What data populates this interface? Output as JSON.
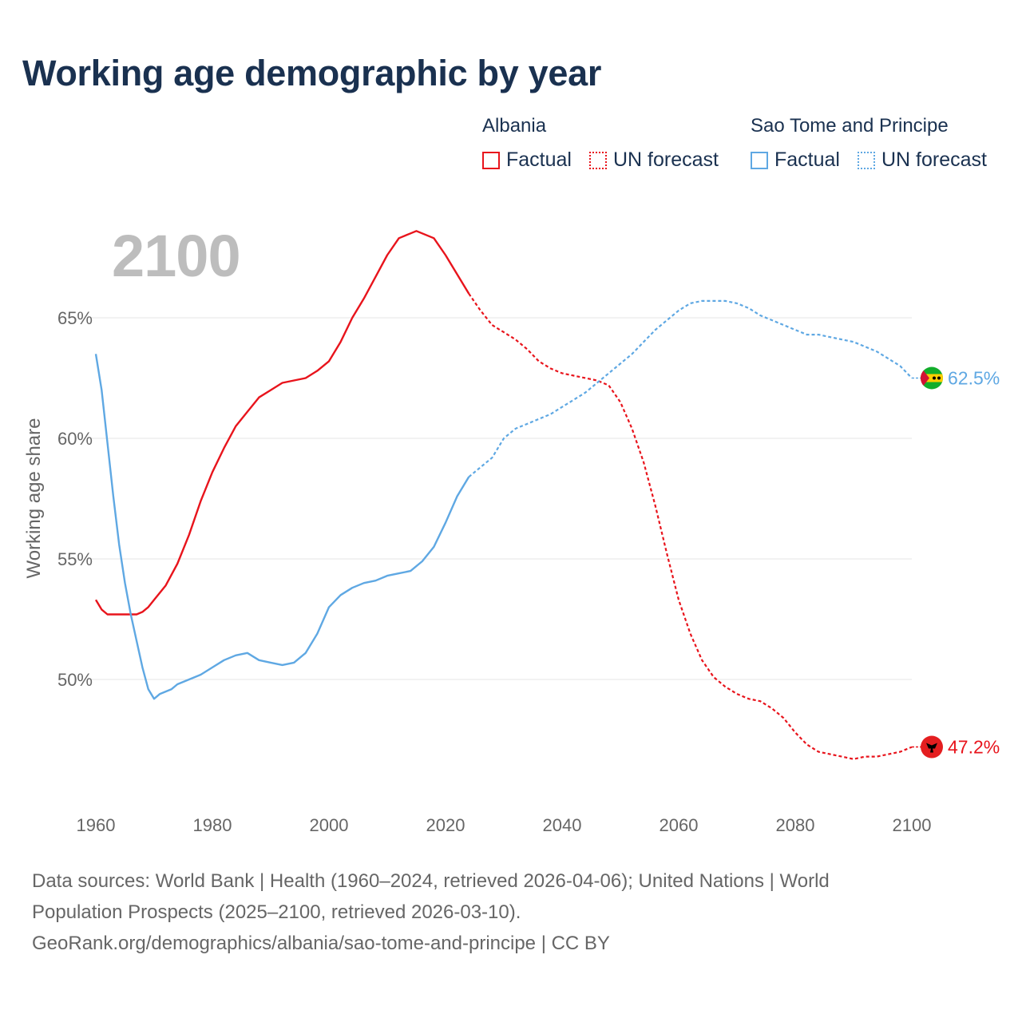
{
  "title": "Working age demographic by year",
  "year_label": "2100",
  "legend": {
    "groups": [
      {
        "name": "Albania",
        "factual": "Factual",
        "forecast": "UN forecast",
        "color": "#e8141c"
      },
      {
        "name": "Sao Tome and Principe",
        "factual": "Factual",
        "forecast": "UN forecast",
        "color": "#5fa8e3"
      }
    ]
  },
  "chart_data": {
    "type": "line",
    "title": "Working age demographic by year",
    "xlabel": "",
    "ylabel": "Working age share",
    "xlim": [
      1960,
      2100
    ],
    "ylim": [
      45,
      70
    ],
    "x_ticks": [
      1960,
      1980,
      2000,
      2020,
      2040,
      2060,
      2080,
      2100
    ],
    "x_tick_labels": [
      "1960",
      "1980",
      "2000",
      "2020",
      "2040",
      "2060",
      "2080",
      "2100"
    ],
    "y_ticks": [
      50,
      55,
      60,
      65
    ],
    "y_tick_labels": [
      "50%",
      "55%",
      "60%",
      "65%"
    ],
    "grid": true,
    "factual_range": [
      1960,
      2024
    ],
    "forecast_range": [
      2024,
      2100
    ],
    "series": [
      {
        "name": "Albania",
        "color": "#e8141c",
        "end_label": "47.2%",
        "flag_icon": "albania-flag-icon",
        "points": [
          [
            1960,
            53.3
          ],
          [
            1961,
            52.9
          ],
          [
            1962,
            52.7
          ],
          [
            1964,
            52.7
          ],
          [
            1966,
            52.7
          ],
          [
            1967,
            52.7
          ],
          [
            1968,
            52.8
          ],
          [
            1969,
            53.0
          ],
          [
            1970,
            53.3
          ],
          [
            1972,
            53.9
          ],
          [
            1974,
            54.8
          ],
          [
            1976,
            56.0
          ],
          [
            1978,
            57.4
          ],
          [
            1979,
            58.0
          ],
          [
            1980,
            58.6
          ],
          [
            1982,
            59.6
          ],
          [
            1984,
            60.5
          ],
          [
            1986,
            61.1
          ],
          [
            1988,
            61.7
          ],
          [
            1990,
            62.0
          ],
          [
            1992,
            62.3
          ],
          [
            1994,
            62.4
          ],
          [
            1996,
            62.5
          ],
          [
            1998,
            62.8
          ],
          [
            2000,
            63.2
          ],
          [
            2002,
            64.0
          ],
          [
            2004,
            65.0
          ],
          [
            2006,
            65.8
          ],
          [
            2008,
            66.7
          ],
          [
            2010,
            67.6
          ],
          [
            2012,
            68.3
          ],
          [
            2014,
            68.5
          ],
          [
            2015,
            68.6
          ],
          [
            2016,
            68.5
          ],
          [
            2018,
            68.3
          ],
          [
            2020,
            67.6
          ],
          [
            2022,
            66.8
          ],
          [
            2024,
            66.0
          ],
          [
            2026,
            65.3
          ],
          [
            2028,
            64.7
          ],
          [
            2030,
            64.4
          ],
          [
            2032,
            64.1
          ],
          [
            2034,
            63.7
          ],
          [
            2036,
            63.2
          ],
          [
            2038,
            62.9
          ],
          [
            2040,
            62.7
          ],
          [
            2042,
            62.6
          ],
          [
            2044,
            62.5
          ],
          [
            2046,
            62.4
          ],
          [
            2048,
            62.2
          ],
          [
            2050,
            61.5
          ],
          [
            2052,
            60.4
          ],
          [
            2054,
            59.0
          ],
          [
            2056,
            57.2
          ],
          [
            2058,
            55.2
          ],
          [
            2060,
            53.3
          ],
          [
            2062,
            51.9
          ],
          [
            2064,
            50.8
          ],
          [
            2066,
            50.1
          ],
          [
            2068,
            49.7
          ],
          [
            2070,
            49.4
          ],
          [
            2072,
            49.2
          ],
          [
            2074,
            49.1
          ],
          [
            2076,
            48.8
          ],
          [
            2078,
            48.4
          ],
          [
            2080,
            47.8
          ],
          [
            2082,
            47.3
          ],
          [
            2084,
            47.0
          ],
          [
            2086,
            46.9
          ],
          [
            2088,
            46.8
          ],
          [
            2090,
            46.7
          ],
          [
            2092,
            46.8
          ],
          [
            2094,
            46.8
          ],
          [
            2096,
            46.9
          ],
          [
            2098,
            47.0
          ],
          [
            2100,
            47.2
          ]
        ]
      },
      {
        "name": "Sao Tome and Principe",
        "color": "#5fa8e3",
        "end_label": "62.5%",
        "flag_icon": "sao-tome-flag-icon",
        "points": [
          [
            1960,
            63.5
          ],
          [
            1961,
            62.0
          ],
          [
            1962,
            59.8
          ],
          [
            1963,
            57.6
          ],
          [
            1964,
            55.6
          ],
          [
            1965,
            54.0
          ],
          [
            1966,
            52.7
          ],
          [
            1967,
            51.6
          ],
          [
            1968,
            50.5
          ],
          [
            1969,
            49.6
          ],
          [
            1970,
            49.2
          ],
          [
            1971,
            49.4
          ],
          [
            1972,
            49.5
          ],
          [
            1973,
            49.6
          ],
          [
            1974,
            49.8
          ],
          [
            1976,
            50.0
          ],
          [
            1978,
            50.2
          ],
          [
            1980,
            50.5
          ],
          [
            1982,
            50.8
          ],
          [
            1984,
            51.0
          ],
          [
            1986,
            51.1
          ],
          [
            1988,
            50.8
          ],
          [
            1990,
            50.7
          ],
          [
            1992,
            50.6
          ],
          [
            1994,
            50.7
          ],
          [
            1996,
            51.1
          ],
          [
            1998,
            51.9
          ],
          [
            2000,
            53.0
          ],
          [
            2002,
            53.5
          ],
          [
            2004,
            53.8
          ],
          [
            2006,
            54.0
          ],
          [
            2008,
            54.1
          ],
          [
            2010,
            54.3
          ],
          [
            2012,
            54.4
          ],
          [
            2014,
            54.5
          ],
          [
            2016,
            54.9
          ],
          [
            2018,
            55.5
          ],
          [
            2020,
            56.5
          ],
          [
            2022,
            57.6
          ],
          [
            2024,
            58.4
          ],
          [
            2026,
            58.8
          ],
          [
            2028,
            59.2
          ],
          [
            2030,
            60.0
          ],
          [
            2032,
            60.4
          ],
          [
            2034,
            60.6
          ],
          [
            2036,
            60.8
          ],
          [
            2038,
            61.0
          ],
          [
            2040,
            61.3
          ],
          [
            2042,
            61.6
          ],
          [
            2044,
            61.9
          ],
          [
            2046,
            62.3
          ],
          [
            2048,
            62.7
          ],
          [
            2050,
            63.1
          ],
          [
            2052,
            63.5
          ],
          [
            2054,
            64.0
          ],
          [
            2056,
            64.5
          ],
          [
            2058,
            64.9
          ],
          [
            2060,
            65.3
          ],
          [
            2062,
            65.6
          ],
          [
            2064,
            65.7
          ],
          [
            2066,
            65.7
          ],
          [
            2068,
            65.7
          ],
          [
            2070,
            65.6
          ],
          [
            2072,
            65.4
          ],
          [
            2074,
            65.1
          ],
          [
            2076,
            64.9
          ],
          [
            2078,
            64.7
          ],
          [
            2080,
            64.5
          ],
          [
            2082,
            64.3
          ],
          [
            2084,
            64.3
          ],
          [
            2086,
            64.2
          ],
          [
            2088,
            64.1
          ],
          [
            2090,
            64.0
          ],
          [
            2092,
            63.8
          ],
          [
            2094,
            63.6
          ],
          [
            2096,
            63.3
          ],
          [
            2098,
            63.0
          ],
          [
            2100,
            62.5
          ]
        ]
      }
    ]
  },
  "footer": {
    "line1": "Data sources: World Bank | Health (1960–2024, retrieved 2026-04-06); United Nations | World",
    "line2": "Population Prospects (2025–2100, retrieved 2026-03-10).",
    "line3": "GeoRank.org/demographics/albania/sao-tome-and-principe | CC BY"
  }
}
